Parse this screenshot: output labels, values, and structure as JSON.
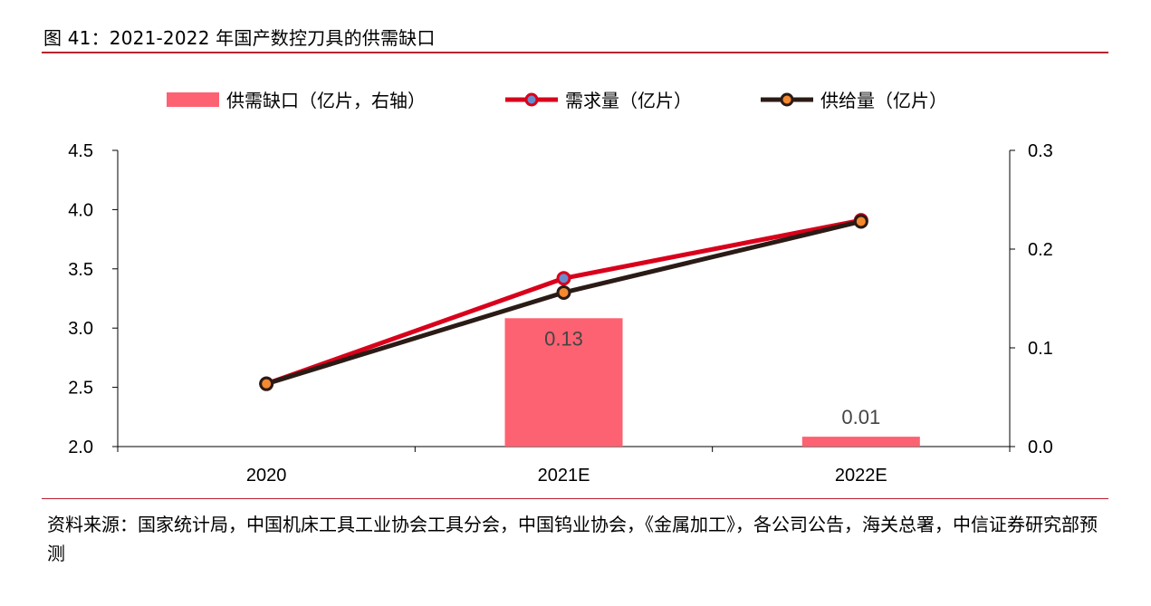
{
  "header": {
    "title": "图 41：2021-2022 年国产数控刀具的供需缺口"
  },
  "footer": {
    "source": "资料来源：国家统计局，中国机床工具工业协会工具分会，中国钨业协会，《金属加工》，各公司公告，海关总署，中信证券研究部预测"
  },
  "colors": {
    "rule": "#b8232f",
    "bar": "#fd6272",
    "demand": "#d9001b",
    "supply": "#2b1b16",
    "marker_demand": "#6a8ccc",
    "marker_supply": "#f4892f"
  },
  "chart_data": {
    "type": "bar+line",
    "categories": [
      "2020",
      "2021E",
      "2022E"
    ],
    "left_axis": {
      "ylim": [
        2.0,
        4.5
      ],
      "ticks": [
        "2.0",
        "2.5",
        "3.0",
        "3.5",
        "4.0",
        "4.5"
      ]
    },
    "right_axis": {
      "ylim": [
        0.0,
        0.3
      ],
      "ticks": [
        "0.0",
        "0.1",
        "0.2",
        "0.3"
      ]
    },
    "legend": {
      "placement": "top"
    },
    "series": [
      {
        "name": "供需缺口（亿片，右轴）",
        "kind": "bar",
        "axis": "right",
        "values": [
          null,
          0.13,
          0.01
        ],
        "labels": [
          "",
          "0.13",
          "0.01"
        ]
      },
      {
        "name": "需求量（亿片）",
        "kind": "line",
        "axis": "left",
        "values": [
          2.53,
          3.42,
          3.91
        ]
      },
      {
        "name": "供给量（亿片）",
        "kind": "line",
        "axis": "left",
        "values": [
          2.53,
          3.3,
          3.9
        ]
      }
    ]
  }
}
